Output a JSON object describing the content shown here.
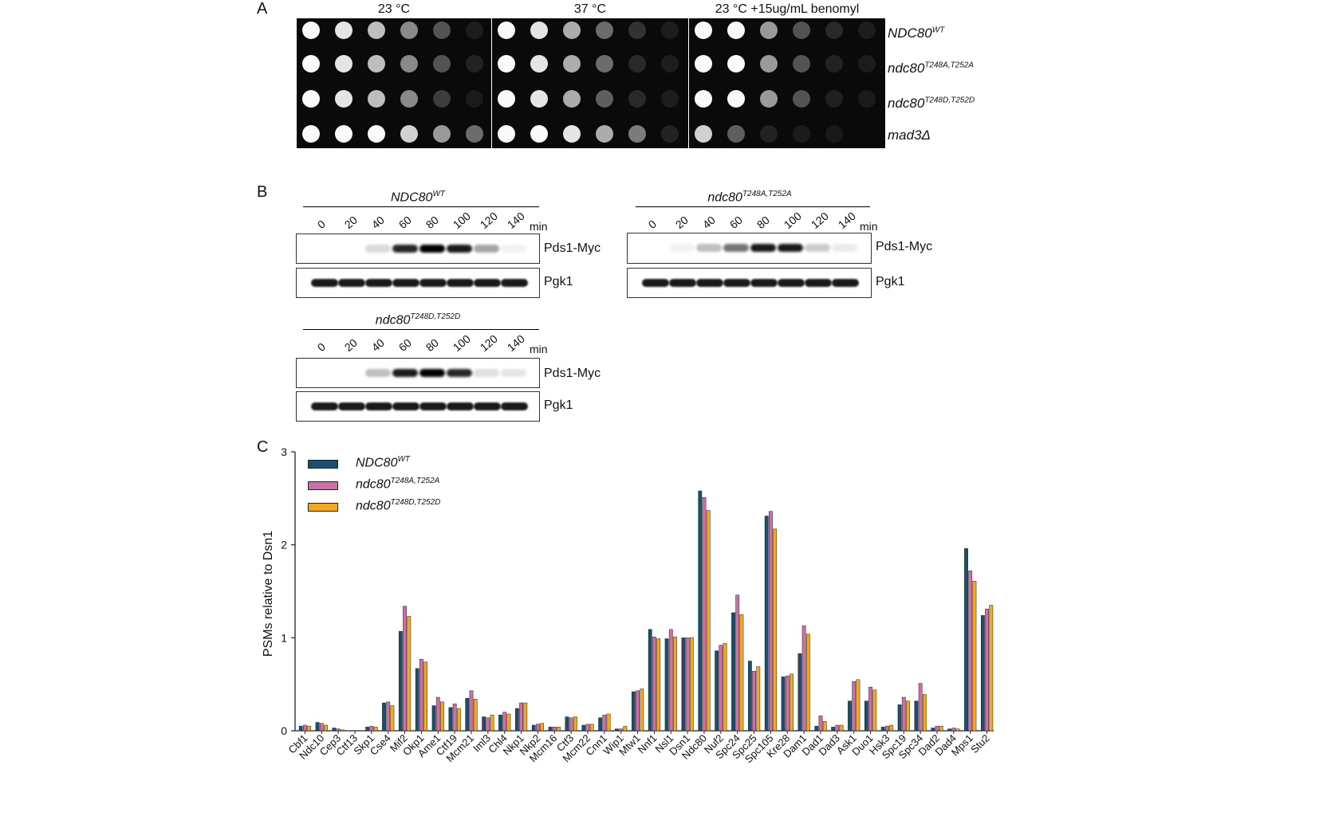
{
  "panelA": {
    "letter": "A",
    "conditions": [
      "23 °C",
      "37 °C",
      "23 °C +15ug/mL benomyl"
    ],
    "strains": [
      {
        "base": "NDC80",
        "sup": "WT"
      },
      {
        "base": "ndc80",
        "sup": "T248A,T252A"
      },
      {
        "base": "ndc80",
        "sup": "T248D,T252D"
      },
      {
        "base": "mad3Δ",
        "sup": ""
      }
    ]
  },
  "panelB": {
    "letter": "B",
    "blots": [
      {
        "title_base": "NDC80",
        "title_sup": "WT"
      },
      {
        "title_base": "ndc80",
        "title_sup": "T248A,T252A"
      },
      {
        "title_base": "ndc80",
        "title_sup": "T248D,T252D"
      }
    ],
    "timepoints": [
      "0",
      "20",
      "40",
      "60",
      "80",
      "100",
      "120",
      "140"
    ],
    "time_unit": "min",
    "band_labels": [
      "Pds1-Myc",
      "Pgk1"
    ]
  },
  "panelC": {
    "letter": "C",
    "legend": [
      {
        "base": "NDC80",
        "sup": "WT",
        "color": "#1b4f6b"
      },
      {
        "base": "ndc80",
        "sup": "T248A,T252A",
        "color": "#cf6fa8"
      },
      {
        "base": "ndc80",
        "sup": "T248D,T252D",
        "color": "#f2a91f"
      }
    ]
  },
  "chart_data": {
    "type": "bar",
    "ylabel": "PSMs relative to Dsn1",
    "ylim": [
      0,
      3
    ],
    "yticks": [
      "0",
      "1",
      "2",
      "3"
    ],
    "categories": [
      "Cbf1",
      "Ndc10",
      "Cep3",
      "Ctf13",
      "Skp1",
      "Cse4",
      "Mif2",
      "Okp1",
      "Ame1",
      "Ctf19",
      "Mcm21",
      "Iml3",
      "Chl4",
      "Nkp1",
      "Nkp2",
      "Mcm16",
      "Ctf3",
      "Mcm22",
      "Cnn1",
      "Wip1",
      "Mtw1",
      "Nnf1",
      "Nsl1",
      "Dsn1",
      "Ndc80",
      "Nuf2",
      "Spc24",
      "Spc25",
      "Spc105",
      "Kre28",
      "Dam1",
      "Dad1",
      "Dad3",
      "Ask1",
      "Duo1",
      "Hsk3",
      "Spc19",
      "Spc34",
      "Dad2",
      "Dad4",
      "Mps1",
      "Stu2"
    ],
    "series": [
      {
        "name": "NDC80 WT",
        "values": [
          0.05,
          0.09,
          0.03,
          0,
          0.04,
          0.3,
          1.07,
          0.67,
          0.27,
          0.25,
          0.35,
          0.15,
          0.17,
          0.24,
          0.06,
          0.04,
          0.15,
          0.06,
          0.14,
          0.02,
          0.42,
          1.09,
          0.99,
          1.0,
          2.58,
          0.86,
          1.27,
          0.75,
          2.31,
          0.58,
          0.83,
          0.05,
          0.04,
          0.32,
          0.32,
          0.04,
          0.28,
          0.32,
          0.03,
          0.02,
          1.96,
          1.24
        ]
      },
      {
        "name": "ndc80 T248A,T252A",
        "values": [
          0.06,
          0.08,
          0.02,
          0,
          0.05,
          0.31,
          1.34,
          0.77,
          0.36,
          0.29,
          0.43,
          0.14,
          0.2,
          0.3,
          0.07,
          0.04,
          0.14,
          0.07,
          0.17,
          0.02,
          0.43,
          1.01,
          1.09,
          1.0,
          2.51,
          0.92,
          1.46,
          0.64,
          2.36,
          0.59,
          1.13,
          0.16,
          0.06,
          0.53,
          0.47,
          0.05,
          0.36,
          0.51,
          0.05,
          0.03,
          1.72,
          1.31
        ]
      },
      {
        "name": "ndc80 T248D,T252D",
        "values": [
          0.05,
          0.06,
          0.01,
          0,
          0.04,
          0.27,
          1.23,
          0.74,
          0.31,
          0.24,
          0.34,
          0.17,
          0.18,
          0.3,
          0.08,
          0.04,
          0.15,
          0.07,
          0.18,
          0.05,
          0.45,
          0.99,
          1.01,
          1.0,
          2.37,
          0.94,
          1.25,
          0.69,
          2.17,
          0.61,
          1.04,
          0.1,
          0.06,
          0.55,
          0.44,
          0.06,
          0.32,
          0.39,
          0.05,
          0.02,
          1.61,
          1.35
        ]
      }
    ]
  }
}
